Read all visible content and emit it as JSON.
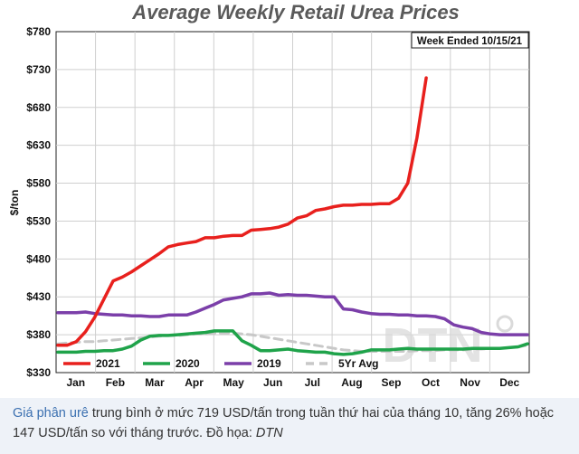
{
  "chart_data": {
    "type": "line",
    "title": "Average Weekly Retail Urea Prices",
    "annotation": "Week Ended 10/15/21",
    "ylabel": "$/ton",
    "ylim": [
      330,
      780
    ],
    "yticks": [
      330,
      380,
      430,
      480,
      530,
      580,
      630,
      680,
      730,
      780
    ],
    "ytick_labels": [
      "$330",
      "$380",
      "$430",
      "$480",
      "$530",
      "$580",
      "$630",
      "$680",
      "$730",
      "$780"
    ],
    "categories": [
      "Jan",
      "Feb",
      "Mar",
      "Apr",
      "May",
      "Jun",
      "Jul",
      "Aug",
      "Sep",
      "Oct",
      "Nov",
      "Dec"
    ],
    "xlim": [
      1,
      52
    ],
    "grid": true,
    "legend_position": "bottom",
    "watermark": "DTN",
    "series": [
      {
        "name": "2021",
        "color": "#e8201d",
        "x": [
          1,
          2,
          3,
          4,
          5,
          6,
          7,
          8,
          9,
          10,
          11,
          12,
          13,
          14,
          15,
          16,
          17,
          18,
          19,
          20,
          21,
          22,
          23,
          24,
          25,
          26,
          27,
          28,
          29,
          30,
          31,
          32,
          33,
          34,
          35,
          36,
          37,
          38,
          39,
          40,
          41
        ],
        "values": [
          366,
          366,
          371,
          384,
          403,
          427,
          451,
          456,
          463,
          471,
          479,
          487,
          496,
          499,
          501,
          503,
          508,
          508,
          510,
          511,
          511,
          518,
          519,
          520,
          522,
          526,
          534,
          537,
          544,
          546,
          549,
          551,
          551,
          552,
          552,
          553,
          553,
          560,
          580,
          640,
          719
        ]
      },
      {
        "name": "2020",
        "color": "#1fa34a",
        "x": [
          1,
          2,
          3,
          4,
          5,
          6,
          7,
          8,
          9,
          10,
          11,
          12,
          13,
          14,
          15,
          16,
          17,
          18,
          19,
          20,
          21,
          22,
          23,
          24,
          25,
          26,
          27,
          28,
          29,
          30,
          31,
          32,
          33,
          34,
          35,
          36,
          37,
          38,
          39,
          40,
          41,
          42,
          43,
          44,
          45,
          46,
          47,
          48,
          49,
          50,
          51,
          52
        ],
        "values": [
          357,
          357,
          357,
          358,
          358,
          359,
          359,
          361,
          365,
          373,
          378,
          379,
          379,
          380,
          381,
          382,
          383,
          385,
          385,
          385,
          372,
          366,
          359,
          359,
          360,
          361,
          359,
          358,
          357,
          357,
          355,
          354,
          355,
          357,
          360,
          360,
          360,
          361,
          362,
          361,
          361,
          361,
          361,
          361,
          361,
          362,
          362,
          362,
          362,
          363,
          364,
          368
        ]
      },
      {
        "name": "2019",
        "color": "#7b3fa9",
        "x": [
          1,
          2,
          3,
          4,
          5,
          6,
          7,
          8,
          9,
          10,
          11,
          12,
          13,
          14,
          15,
          16,
          17,
          18,
          19,
          20,
          21,
          22,
          23,
          24,
          25,
          26,
          27,
          28,
          29,
          30,
          31,
          32,
          33,
          34,
          35,
          36,
          37,
          38,
          39,
          40,
          41,
          42,
          43,
          44,
          45,
          46,
          47,
          48,
          49,
          50,
          51,
          52
        ],
        "values": [
          409,
          409,
          409,
          410,
          408,
          407,
          406,
          406,
          405,
          405,
          404,
          404,
          406,
          406,
          406,
          410,
          415,
          420,
          426,
          428,
          430,
          434,
          434,
          435,
          432,
          433,
          432,
          432,
          431,
          430,
          430,
          414,
          413,
          410,
          408,
          407,
          407,
          406,
          406,
          405,
          405,
          404,
          401,
          393,
          390,
          388,
          383,
          381,
          380,
          380,
          380,
          380
        ]
      },
      {
        "name": "5Yr Avg",
        "color": "#c8c8c8",
        "dashed": true,
        "x": [
          1,
          2,
          3,
          4,
          5,
          6,
          7,
          8,
          9,
          10,
          11,
          12,
          13,
          14,
          15,
          16,
          17,
          18,
          19,
          20,
          21,
          22,
          23,
          24,
          25,
          26,
          27,
          28,
          29,
          30,
          31,
          32,
          33,
          34,
          35,
          36,
          37,
          38,
          39,
          40,
          41,
          42,
          43,
          44,
          45,
          46,
          47,
          48,
          49,
          50,
          51,
          52
        ],
        "values": [
          368,
          369,
          370,
          371,
          371,
          372,
          373,
          374,
          375,
          376,
          377,
          378,
          379,
          379,
          380,
          381,
          381,
          382,
          382,
          382,
          381,
          380,
          378,
          376,
          374,
          372,
          370,
          368,
          366,
          364,
          362,
          360,
          359,
          358,
          358,
          358,
          358,
          358,
          358,
          359,
          359,
          359,
          360,
          360,
          360,
          361,
          361,
          362,
          362,
          363,
          364,
          366
        ]
      }
    ]
  },
  "caption": {
    "link_text": "Giá phân urê",
    "text": " trung bình ở mức 719 USD/tấn trong tuần thứ hai của tháng 10, tăng 26% hoặc 147 USD/tấn so với tháng trước. Đồ họa: ",
    "credit": "DTN"
  }
}
